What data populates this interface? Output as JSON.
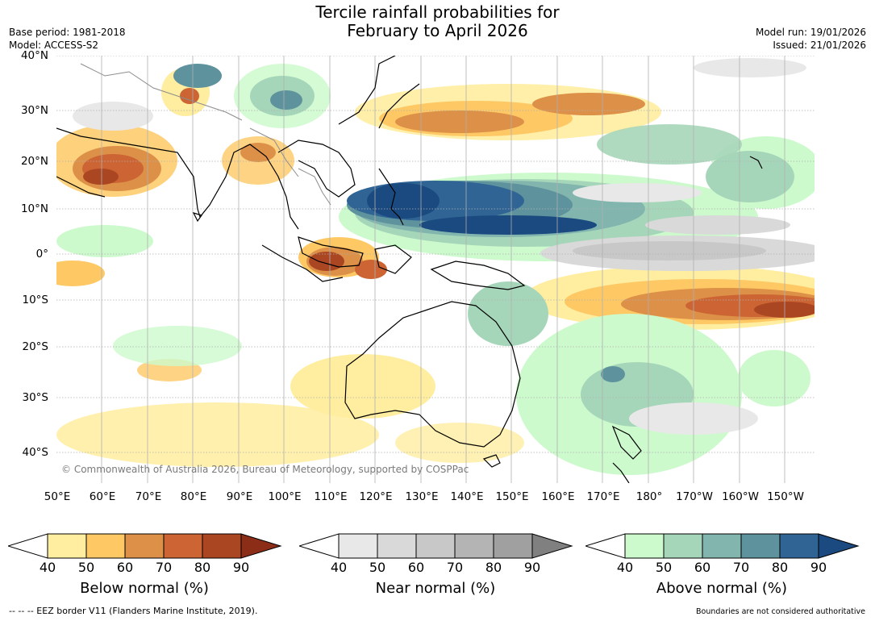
{
  "title_line1": "Tercile rainfall probabilities for",
  "title_line2": "February to April 2026",
  "base_period": "Base period: 1981-2018",
  "model": "Model: ACCESS-S2",
  "model_run": "Model run: 19/01/2026",
  "issued": "Issued: 21/01/2026",
  "copyright": "© Commonwealth of Australia 2026, Bureau of Meteorology, supported by COSPPac",
  "lat_labels": [
    "40°N",
    "30°N",
    "20°N",
    "10°N",
    "0°",
    "10°S",
    "20°S",
    "30°S",
    "40°S"
  ],
  "lon_labels": [
    "50°E",
    "60°E",
    "70°E",
    "80°E",
    "90°E",
    "100°E",
    "110°E",
    "120°E",
    "130°E",
    "140°E",
    "150°E",
    "160°E",
    "170°E",
    "180°",
    "170°W",
    "160°W",
    "150°W"
  ],
  "colorbars": [
    {
      "label": "Below normal (%)",
      "ticks": [
        "40",
        "50",
        "60",
        "70",
        "80",
        "90"
      ],
      "colors": [
        "#ffeda0",
        "#fec965",
        "#dd9047",
        "#cc6434",
        "#ab4622",
        "#8c2d18"
      ]
    },
    {
      "label": "Near normal (%)",
      "ticks": [
        "40",
        "50",
        "60",
        "70",
        "80",
        "90"
      ],
      "colors": [
        "#e8e8e8",
        "#d9d9d9",
        "#c8c8c8",
        "#b4b4b4",
        "#a0a0a0",
        "#808080"
      ]
    },
    {
      "label": "Above normal (%)",
      "ticks": [
        "40",
        "50",
        "60",
        "70",
        "80",
        "90"
      ],
      "colors": [
        "#ccfacc",
        "#a6d6b9",
        "#82b5ad",
        "#5e939e",
        "#2f6494",
        "#1a4a80"
      ]
    }
  ],
  "footer_left": "--  --  -- EEZ border V11 (Flanders Marine Institute, 2019).",
  "footer_right": "Boundaries are not considered authoritative"
}
